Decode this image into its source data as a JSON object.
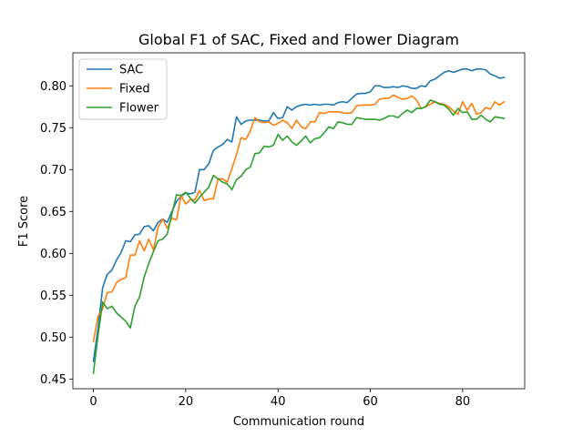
{
  "chart_data": {
    "type": "line",
    "title": "Global F1 of SAC, Fixed and Flower Diagram",
    "xlabel": "Communication round",
    "ylabel": "F1 Score",
    "xlim": [
      -4.45,
      93.45
    ],
    "ylim": [
      0.4384,
      0.8394
    ],
    "xticks": [
      0,
      20,
      40,
      60,
      80
    ],
    "yticks": [
      0.45,
      0.5,
      0.55,
      0.6,
      0.65,
      0.7,
      0.75,
      0.8
    ],
    "ytick_labels": [
      "0.45",
      "0.50",
      "0.55",
      "0.60",
      "0.65",
      "0.70",
      "0.75",
      "0.80"
    ],
    "grid": false,
    "legend_position": "upper-left",
    "x": [
      0,
      1,
      2,
      3,
      4,
      5,
      6,
      7,
      8,
      9,
      10,
      11,
      12,
      13,
      14,
      15,
      16,
      17,
      18,
      19,
      20,
      21,
      22,
      23,
      24,
      25,
      26,
      27,
      28,
      29,
      30,
      31,
      32,
      33,
      34,
      35,
      36,
      37,
      38,
      39,
      40,
      41,
      42,
      43,
      44,
      45,
      46,
      47,
      48,
      49,
      50,
      51,
      52,
      53,
      54,
      55,
      56,
      57,
      58,
      59,
      60,
      61,
      62,
      63,
      64,
      65,
      66,
      67,
      68,
      69,
      70,
      71,
      72,
      73,
      74,
      75,
      76,
      77,
      78,
      79,
      80,
      81,
      82,
      83,
      84,
      85,
      86,
      87,
      88,
      89
    ],
    "series": [
      {
        "name": "SAC",
        "color": "#1f77b4",
        "values": [
          0.471,
          0.511,
          0.559,
          0.575,
          0.58,
          0.592,
          0.601,
          0.615,
          0.614,
          0.622,
          0.623,
          0.632,
          0.633,
          0.627,
          0.637,
          0.641,
          0.637,
          0.65,
          0.662,
          0.668,
          0.672,
          0.671,
          0.673,
          0.7,
          0.7,
          0.707,
          0.723,
          0.727,
          0.73,
          0.736,
          0.733,
          0.763,
          0.754,
          0.758,
          0.759,
          0.759,
          0.759,
          0.758,
          0.758,
          0.768,
          0.761,
          0.762,
          0.775,
          0.771,
          0.775,
          0.777,
          0.778,
          0.777,
          0.778,
          0.777,
          0.778,
          0.778,
          0.777,
          0.78,
          0.781,
          0.78,
          0.785,
          0.79,
          0.791,
          0.791,
          0.793,
          0.8,
          0.8,
          0.798,
          0.798,
          0.799,
          0.798,
          0.8,
          0.799,
          0.797,
          0.797,
          0.8,
          0.799,
          0.806,
          0.808,
          0.812,
          0.816,
          0.818,
          0.816,
          0.818,
          0.82,
          0.82,
          0.818,
          0.82,
          0.82,
          0.819,
          0.814,
          0.812,
          0.809,
          0.81
        ]
      },
      {
        "name": "Fixed",
        "color": "#ff7f0e",
        "values": [
          0.495,
          0.525,
          0.534,
          0.553,
          0.554,
          0.565,
          0.569,
          0.571,
          0.598,
          0.598,
          0.615,
          0.603,
          0.617,
          0.604,
          0.631,
          0.641,
          0.63,
          0.642,
          0.64,
          0.669,
          0.659,
          0.664,
          0.664,
          0.675,
          0.663,
          0.665,
          0.665,
          0.689,
          0.689,
          0.685,
          0.701,
          0.718,
          0.738,
          0.736,
          0.746,
          0.762,
          0.757,
          0.756,
          0.757,
          0.753,
          0.755,
          0.759,
          0.756,
          0.749,
          0.759,
          0.751,
          0.749,
          0.757,
          0.757,
          0.768,
          0.767,
          0.769,
          0.769,
          0.769,
          0.768,
          0.767,
          0.768,
          0.776,
          0.777,
          0.777,
          0.777,
          0.778,
          0.784,
          0.785,
          0.785,
          0.789,
          0.786,
          0.784,
          0.785,
          0.788,
          0.783,
          0.773,
          0.775,
          0.778,
          0.781,
          0.779,
          0.778,
          0.775,
          0.77,
          0.766,
          0.781,
          0.771,
          0.779,
          0.766,
          0.768,
          0.774,
          0.772,
          0.781,
          0.777,
          0.781
        ]
      },
      {
        "name": "Flower",
        "color": "#2ca02c",
        "values": [
          0.457,
          0.502,
          0.542,
          0.534,
          0.537,
          0.529,
          0.524,
          0.519,
          0.511,
          0.537,
          0.548,
          0.572,
          0.588,
          0.602,
          0.615,
          0.617,
          0.623,
          0.647,
          0.67,
          0.669,
          0.673,
          0.666,
          0.66,
          0.667,
          0.673,
          0.679,
          0.693,
          0.689,
          0.685,
          0.683,
          0.676,
          0.688,
          0.692,
          0.7,
          0.703,
          0.719,
          0.72,
          0.728,
          0.727,
          0.729,
          0.742,
          0.735,
          0.74,
          0.733,
          0.729,
          0.734,
          0.74,
          0.732,
          0.737,
          0.738,
          0.744,
          0.751,
          0.749,
          0.757,
          0.756,
          0.754,
          0.754,
          0.762,
          0.761,
          0.76,
          0.76,
          0.76,
          0.759,
          0.761,
          0.764,
          0.764,
          0.762,
          0.767,
          0.771,
          0.768,
          0.773,
          0.773,
          0.775,
          0.783,
          0.781,
          0.778,
          0.777,
          0.772,
          0.765,
          0.773,
          0.768,
          0.769,
          0.76,
          0.76,
          0.765,
          0.76,
          0.757,
          0.763,
          0.762,
          0.761
        ]
      }
    ]
  }
}
